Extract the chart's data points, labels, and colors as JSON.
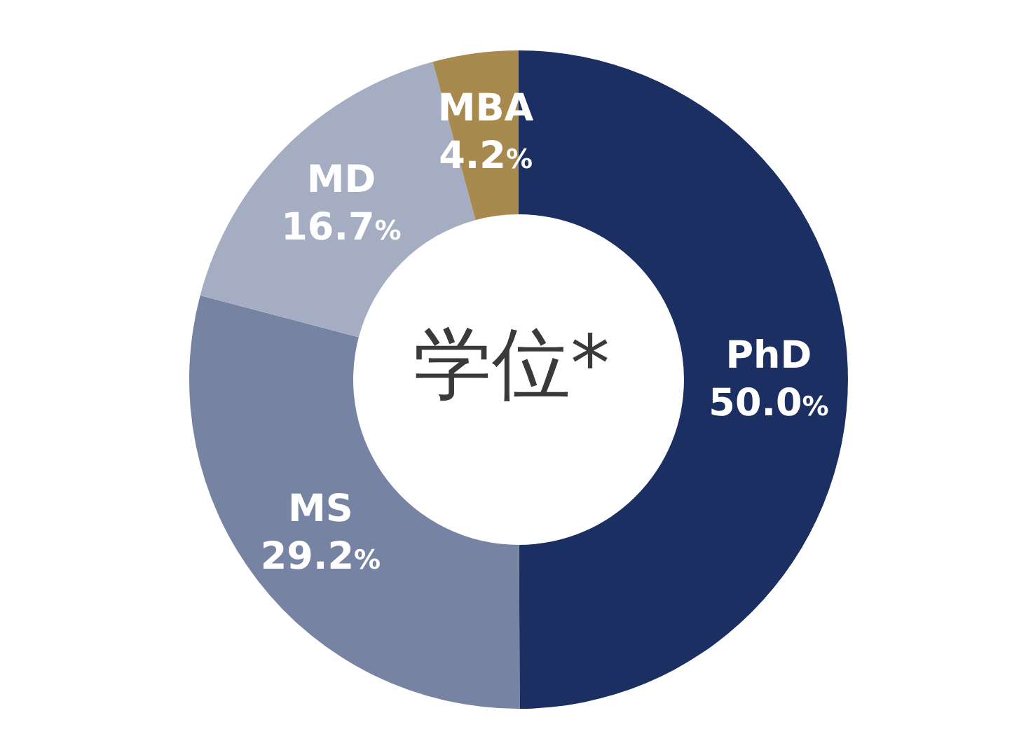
{
  "chart_data": {
    "type": "donut",
    "title": "学位*",
    "categories": [
      "PhD",
      "MS",
      "MD",
      "MBA"
    ],
    "values": [
      50.0,
      29.2,
      16.7,
      4.2
    ],
    "colors": [
      "#1c2f63",
      "#7683a3",
      "#a5adc3",
      "#a88a4e"
    ],
    "value_labels": [
      "50.0%",
      "29.2%",
      "16.7%",
      "4.2%"
    ],
    "legend": false
  }
}
